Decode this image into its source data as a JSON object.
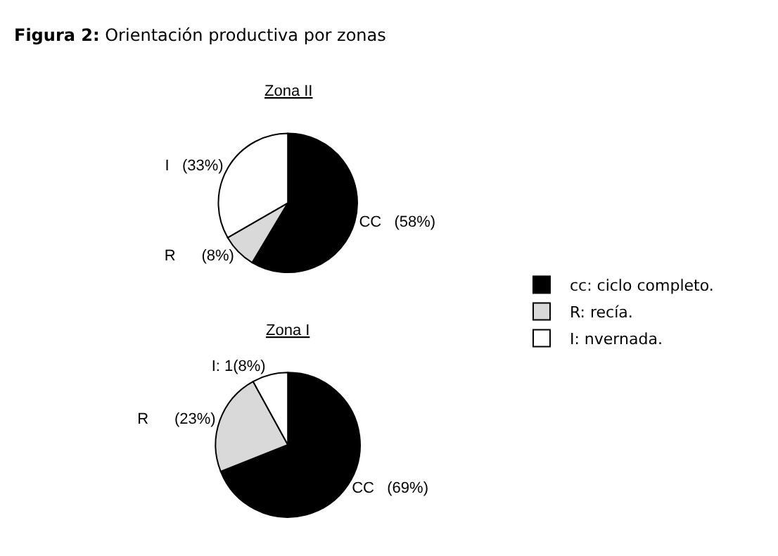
{
  "chart_data": [
    {
      "type": "pie",
      "title": "Figura 2: Orientación productiva por zonas",
      "subtitle": "Zona II",
      "categories": [
        "cc: ciclo completo.",
        "R: recía.",
        "I: nvernada."
      ],
      "values": [
        58,
        8,
        33
      ],
      "colors": [
        "#000000",
        "#d9d9d9",
        "#ffffff"
      ],
      "value_labels": [
        "CC   (58%)",
        "R      (8%)",
        "I   (33%)"
      ],
      "legend": "right"
    },
    {
      "type": "pie",
      "subtitle": "Zona I",
      "values": [
        69,
        23,
        8
      ],
      "colors": [
        "#000000",
        "#d9d9d9",
        "#ffffff"
      ],
      "value_labels": [
        "CC   (69%)",
        "R      (23%)",
        "I: 1(8%)"
      ]
    }
  ]
}
